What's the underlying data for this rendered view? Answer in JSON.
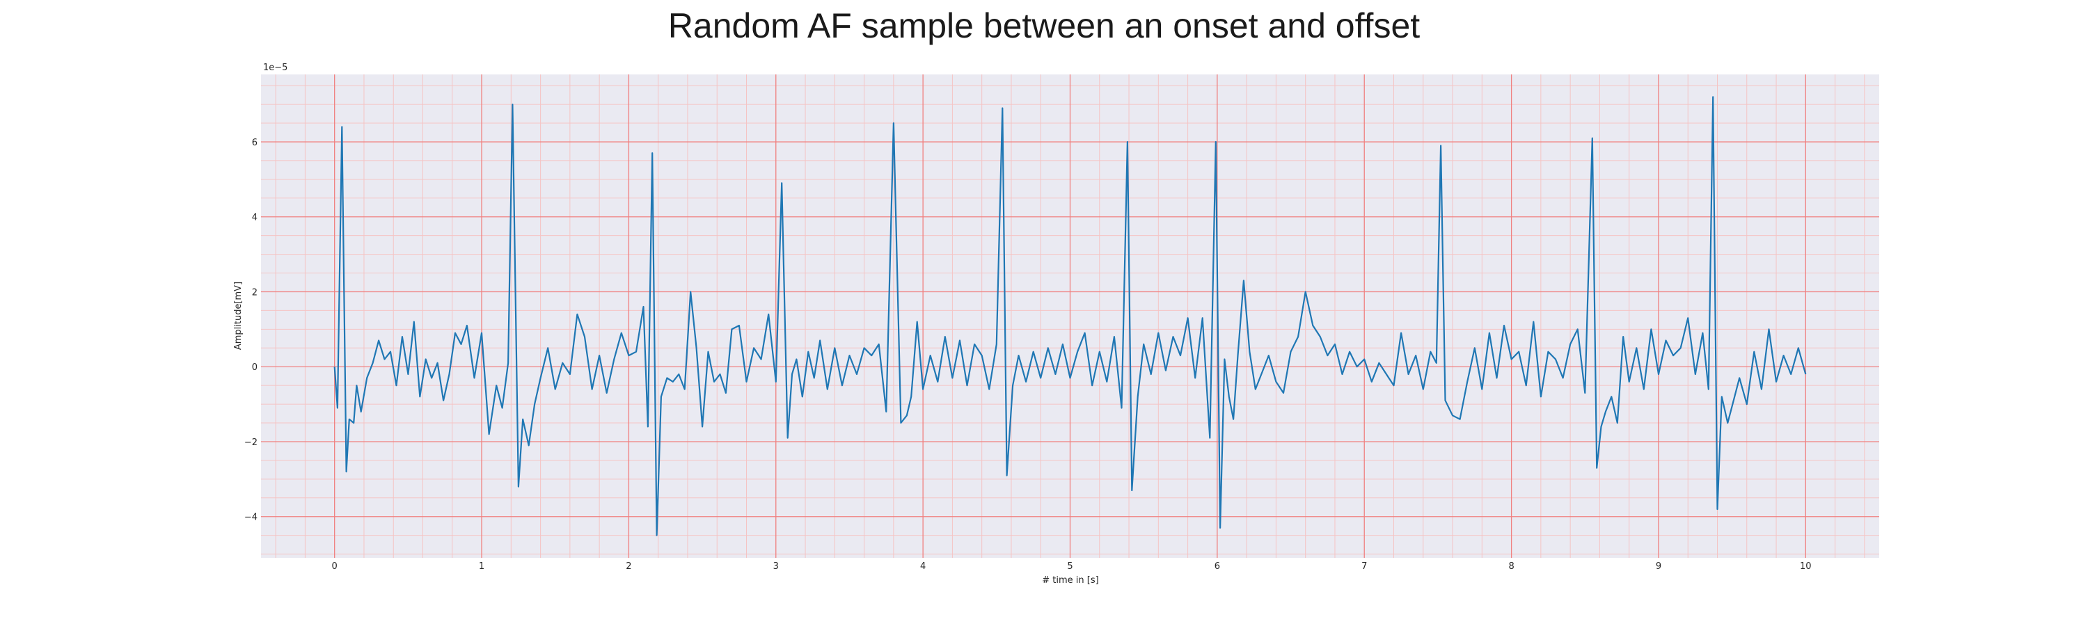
{
  "chart_data": {
    "type": "line",
    "title": "Random AF sample between an onset and offset",
    "xlabel": "# time in [s]",
    "ylabel": "Amplitude[mV]",
    "y_offset_text": "1e−5",
    "y_scale_factor": 1e-05,
    "xlim": [
      -0.5,
      10.5
    ],
    "ylim": [
      -5.1,
      7.8
    ],
    "x_ticks": [
      0,
      1,
      2,
      3,
      4,
      5,
      6,
      7,
      8,
      9,
      10
    ],
    "x_tick_labels": [
      "0",
      "1",
      "2",
      "3",
      "4",
      "5",
      "6",
      "7",
      "8",
      "9",
      "10"
    ],
    "y_ticks": [
      -4,
      -2,
      0,
      2,
      4,
      6
    ],
    "y_tick_labels": [
      "−4",
      "−2",
      "0",
      "2",
      "4",
      "6"
    ],
    "grid": "major red lines, minor pink lines",
    "colors": {
      "line": "#1f77b4",
      "plot_background": "#eaeaf2",
      "major_grid": "#f08080",
      "minor_grid": "#f5c4c4"
    },
    "series": [
      {
        "name": "",
        "x": [
          0.0,
          0.02,
          0.05,
          0.08,
          0.1,
          0.13,
          0.15,
          0.18,
          0.22,
          0.26,
          0.3,
          0.34,
          0.38,
          0.42,
          0.46,
          0.5,
          0.54,
          0.58,
          0.62,
          0.66,
          0.7,
          0.74,
          0.78,
          0.82,
          0.86,
          0.9,
          0.95,
          1.0,
          1.05,
          1.1,
          1.14,
          1.18,
          1.21,
          1.25,
          1.28,
          1.32,
          1.36,
          1.4,
          1.45,
          1.5,
          1.55,
          1.6,
          1.65,
          1.7,
          1.75,
          1.8,
          1.85,
          1.9,
          1.95,
          2.0,
          2.05,
          2.1,
          2.13,
          2.16,
          2.19,
          2.22,
          2.26,
          2.3,
          2.34,
          2.38,
          2.42,
          2.46,
          2.5,
          2.54,
          2.58,
          2.62,
          2.66,
          2.7,
          2.75,
          2.8,
          2.85,
          2.9,
          2.95,
          3.0,
          3.04,
          3.08,
          3.11,
          3.14,
          3.18,
          3.22,
          3.26,
          3.3,
          3.35,
          3.4,
          3.45,
          3.5,
          3.55,
          3.6,
          3.65,
          3.7,
          3.75,
          3.8,
          3.85,
          3.89,
          3.92,
          3.96,
          4.0,
          4.05,
          4.1,
          4.15,
          4.2,
          4.25,
          4.3,
          4.35,
          4.4,
          4.45,
          4.5,
          4.54,
          4.57,
          4.61,
          4.65,
          4.7,
          4.75,
          4.8,
          4.85,
          4.9,
          4.95,
          5.0,
          5.05,
          5.1,
          5.15,
          5.2,
          5.25,
          5.3,
          5.35,
          5.39,
          5.42,
          5.46,
          5.5,
          5.55,
          5.6,
          5.65,
          5.7,
          5.75,
          5.8,
          5.85,
          5.9,
          5.95,
          5.99,
          6.02,
          6.05,
          6.08,
          6.11,
          6.14,
          6.18,
          6.22,
          6.26,
          6.3,
          6.35,
          6.4,
          6.45,
          6.5,
          6.55,
          6.6,
          6.65,
          6.7,
          6.75,
          6.8,
          6.85,
          6.9,
          6.95,
          7.0,
          7.05,
          7.1,
          7.15,
          7.2,
          7.25,
          7.3,
          7.35,
          7.4,
          7.45,
          7.49,
          7.52,
          7.55,
          7.6,
          7.65,
          7.7,
          7.75,
          7.8,
          7.85,
          7.9,
          7.95,
          8.0,
          8.05,
          8.1,
          8.15,
          8.2,
          8.25,
          8.3,
          8.35,
          8.4,
          8.45,
          8.5,
          8.55,
          8.58,
          8.61,
          8.64,
          8.68,
          8.72,
          8.76,
          8.8,
          8.85,
          8.9,
          8.95,
          9.0,
          9.05,
          9.1,
          9.15,
          9.2,
          9.25,
          9.3,
          9.34,
          9.37,
          9.4,
          9.43,
          9.47,
          9.51,
          9.55,
          9.6,
          9.65,
          9.7,
          9.75,
          9.8,
          9.85,
          9.9,
          9.95,
          10.0
        ],
        "y": [
          0.0,
          -1.1,
          6.4,
          -2.8,
          -1.4,
          -1.5,
          -0.5,
          -1.2,
          -0.3,
          0.1,
          0.7,
          0.2,
          0.4,
          -0.5,
          0.8,
          -0.2,
          1.2,
          -0.8,
          0.2,
          -0.3,
          0.1,
          -0.9,
          -0.2,
          0.9,
          0.6,
          1.1,
          -0.3,
          0.9,
          -1.8,
          -0.5,
          -1.1,
          0.1,
          7.0,
          -3.2,
          -1.4,
          -2.1,
          -1.0,
          -0.3,
          0.5,
          -0.6,
          0.1,
          -0.2,
          1.4,
          0.8,
          -0.6,
          0.3,
          -0.7,
          0.2,
          0.9,
          0.3,
          0.4,
          1.6,
          -1.6,
          5.7,
          -4.5,
          -0.8,
          -0.3,
          -0.4,
          -0.2,
          -0.6,
          2.0,
          0.5,
          -1.6,
          0.4,
          -0.4,
          -0.2,
          -0.7,
          1.0,
          1.1,
          -0.4,
          0.5,
          0.2,
          1.4,
          -0.4,
          4.9,
          -1.9,
          -0.2,
          0.2,
          -0.8,
          0.4,
          -0.3,
          0.7,
          -0.6,
          0.5,
          -0.5,
          0.3,
          -0.2,
          0.5,
          0.3,
          0.6,
          -1.2,
          6.5,
          -1.5,
          -1.3,
          -0.8,
          1.2,
          -0.6,
          0.3,
          -0.4,
          0.8,
          -0.3,
          0.7,
          -0.5,
          0.6,
          0.3,
          -0.6,
          0.6,
          6.9,
          -2.9,
          -0.5,
          0.3,
          -0.4,
          0.4,
          -0.3,
          0.5,
          -0.2,
          0.6,
          -0.3,
          0.4,
          0.9,
          -0.5,
          0.4,
          -0.4,
          0.8,
          -1.1,
          6.0,
          -3.3,
          -0.8,
          0.6,
          -0.2,
          0.9,
          -0.1,
          0.8,
          0.3,
          1.3,
          -0.3,
          1.3,
          -1.9,
          6.0,
          -4.3,
          0.2,
          -0.8,
          -1.4,
          0.3,
          2.3,
          0.4,
          -0.6,
          -0.2,
          0.3,
          -0.4,
          -0.7,
          0.4,
          0.8,
          2.0,
          1.1,
          0.8,
          0.3,
          0.6,
          -0.2,
          0.4,
          0.0,
          0.2,
          -0.4,
          0.1,
          -0.2,
          -0.5,
          0.9,
          -0.2,
          0.3,
          -0.6,
          0.4,
          0.1,
          5.9,
          -0.9,
          -1.3,
          -1.4,
          -0.4,
          0.5,
          -0.6,
          0.9,
          -0.3,
          1.1,
          0.2,
          0.4,
          -0.5,
          1.2,
          -0.8,
          0.4,
          0.2,
          -0.3,
          0.6,
          1.0,
          -0.7,
          6.1,
          -2.7,
          -1.6,
          -1.2,
          -0.8,
          -1.5,
          0.8,
          -0.4,
          0.5,
          -0.6,
          1.0,
          -0.2,
          0.7,
          0.3,
          0.5,
          1.3,
          -0.2,
          0.9,
          -0.6,
          7.2,
          -3.8,
          -0.8,
          -1.5,
          -0.9,
          -0.3,
          -1.0,
          0.4,
          -0.6,
          1.0,
          -0.4,
          0.3,
          -0.2,
          0.5,
          -0.2
        ]
      }
    ]
  }
}
